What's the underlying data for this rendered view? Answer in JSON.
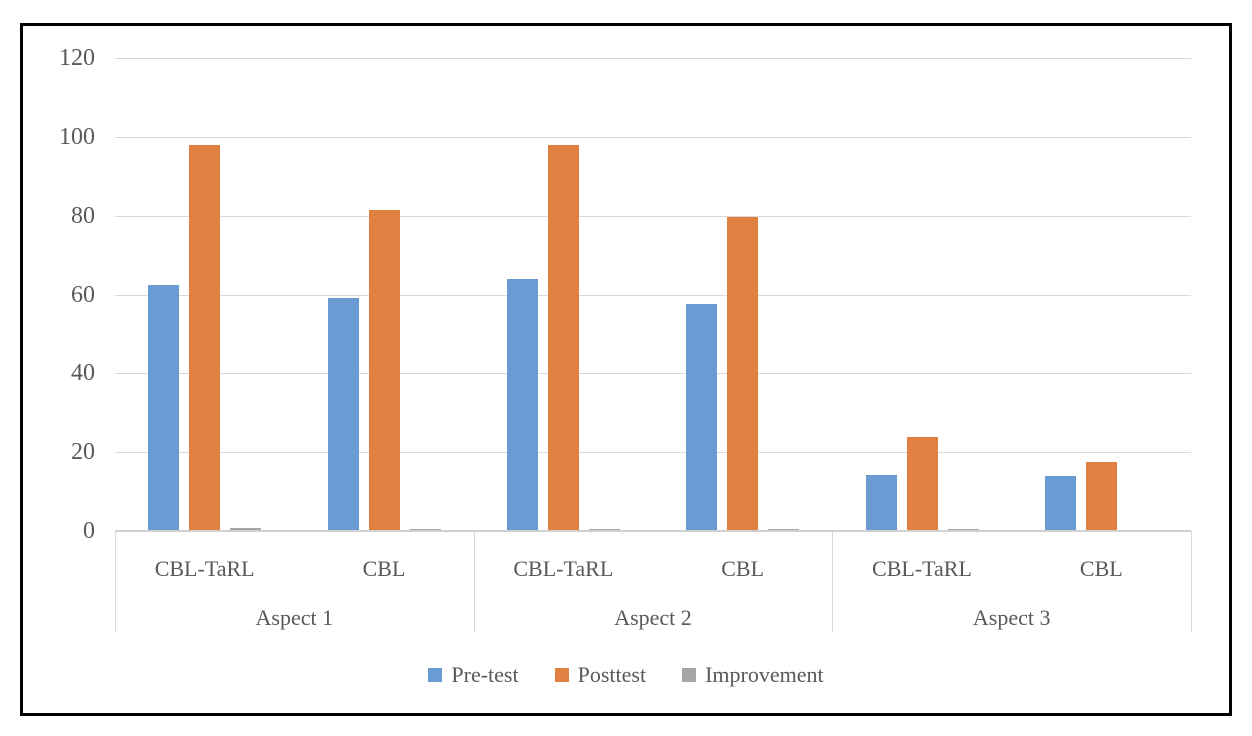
{
  "chart_data": {
    "type": "bar",
    "title": "",
    "xlabel": "",
    "ylabel": "",
    "groups": [
      "Aspect 1",
      "Aspect 2",
      "Aspect 3"
    ],
    "categories": [
      "CBL-TaRL",
      "CBL",
      "CBL-TaRL",
      "CBL",
      "CBL-TaRL",
      "CBL"
    ],
    "series": [
      {
        "name": "Pre-test",
        "color": "#6a9bd2",
        "values": [
          62.4,
          59.0,
          63.9,
          57.5,
          14.2,
          14.0
        ]
      },
      {
        "name": "Posttest",
        "color": "#e08142",
        "values": [
          97.9,
          81.5,
          97.9,
          79.7,
          23.9,
          17.5
        ]
      },
      {
        "name": "Improvement",
        "color": "#a6a6a6",
        "values": [
          0.7,
          0.5,
          0.6,
          0.4,
          0.5,
          0.3
        ]
      }
    ],
    "y_axis": {
      "min": 0,
      "max": 120,
      "step": 20,
      "ticks": [
        "120",
        "100",
        "80",
        "60",
        "40",
        "20",
        "0"
      ]
    },
    "legend": [
      "Pre-test",
      "Posttest",
      "Improvement"
    ],
    "legend_position": "bottom",
    "grid": true
  },
  "colors": {
    "frame_border": "#000000",
    "gridline": "#d9d9d9",
    "axis_line": "#d0d0d0",
    "text": "#595959",
    "background": "#ffffff"
  }
}
